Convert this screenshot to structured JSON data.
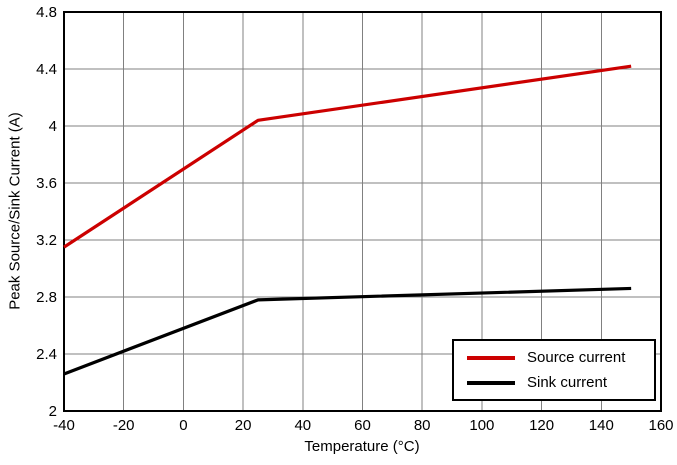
{
  "chart_data": {
    "type": "line",
    "title": "",
    "xlabel": "Temperature (°C)",
    "ylabel": "Peak Source/Sink Current (A)",
    "xlim": [
      -40,
      160
    ],
    "ylim": [
      2,
      4.8
    ],
    "xticks": [
      -40,
      -20,
      0,
      20,
      40,
      60,
      80,
      100,
      120,
      140,
      160
    ],
    "xtick_labels": [
      "-40",
      "-20",
      "0",
      "20",
      "40",
      "60",
      "80",
      "100",
      "120",
      "140",
      "160"
    ],
    "yticks": [
      2,
      2.4,
      2.8,
      3.2,
      3.6,
      4,
      4.4,
      4.8
    ],
    "ytick_labels": [
      "2",
      "2.4",
      "2.8",
      "3.2",
      "3.6",
      "4",
      "4.4",
      "4.8"
    ],
    "grid": true,
    "grid_color": "#808080",
    "axis_color": "#000000",
    "legend_position": "bottom-right",
    "series": [
      {
        "name": "Source current",
        "color": "#cc0000",
        "x": [
          -40,
          25,
          150
        ],
        "y": [
          3.15,
          4.04,
          4.42
        ]
      },
      {
        "name": "Sink current",
        "color": "#000000",
        "x": [
          -40,
          25,
          150
        ],
        "y": [
          2.26,
          2.78,
          2.86
        ]
      }
    ]
  }
}
